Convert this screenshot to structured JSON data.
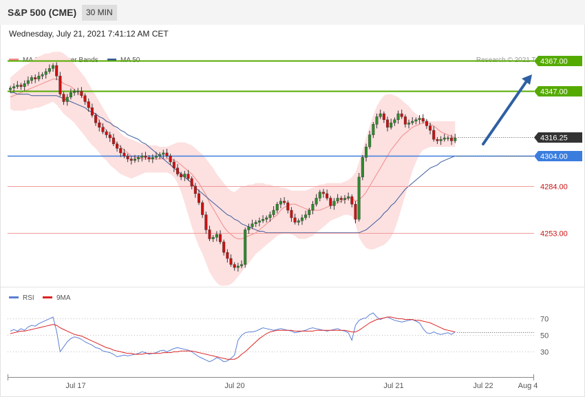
{
  "header": {
    "title": "S&P 500 (CME)",
    "timeframe": "30 MIN",
    "datetime": "Wednesday, July 21, 2021 7:41:12 AM CET"
  },
  "legend": {
    "ma20_label": "MA 20 + Bollinger Bands",
    "ma50_label": "MA 50",
    "copyright": "Research © 2021 Trading Central",
    "rsi_label": "RSI",
    "rsi_ma_label": "9MA"
  },
  "colors": {
    "up_candle": "#2e8b2e",
    "down_candle": "#cc1111",
    "bollinger_fill": "#fde0e0",
    "ma20": "#f28a8a",
    "ma50": "#3a5a9a",
    "resistance": "#55aa00",
    "pivot": "#3b7ddd",
    "support": "#f09a9a",
    "last_price_tag": "#333333",
    "rsi": "#5a7fd4",
    "rsi_ma": "#dd2222",
    "arrow": "#2e5fa3"
  },
  "chart_data": [
    {
      "type": "candlestick",
      "title": "",
      "ylim": [
        4220,
        4380
      ],
      "x_ticks": [
        "Jul 17",
        "Jul 20",
        "Jul 21",
        "Jul 22",
        "Aug 4"
      ],
      "legend_position": "top-left",
      "levels": [
        {
          "label": "4367.00",
          "value": 4367,
          "kind": "resistance"
        },
        {
          "label": "4347.00",
          "value": 4347,
          "kind": "resistance"
        },
        {
          "label": "4316.25",
          "value": 4316.25,
          "kind": "last"
        },
        {
          "label": "4304.00",
          "value": 4304,
          "kind": "pivot"
        },
        {
          "label": "4284.00",
          "value": 4284,
          "kind": "support"
        },
        {
          "label": "4253.00",
          "value": 4253,
          "kind": "support"
        }
      ],
      "close": [
        4349,
        4350,
        4351,
        4350,
        4352,
        4354,
        4356,
        4355,
        4357,
        4358,
        4360,
        4362,
        4364,
        4357,
        4345,
        4340,
        4343,
        4346,
        4347,
        4347,
        4344,
        4340,
        4336,
        4331,
        4326,
        4323,
        4320,
        4318,
        4316,
        4312,
        4309,
        4306,
        4304,
        4302,
        4301,
        4302,
        4303,
        4304,
        4303,
        4302,
        4303,
        4304,
        4305,
        4306,
        4304,
        4300,
        4296,
        4292,
        4290,
        4292,
        4289,
        4284,
        4279,
        4273,
        4265,
        4255,
        4249,
        4250,
        4252,
        4247,
        4240,
        4236,
        4232,
        4230,
        4231,
        4232,
        4255,
        4257,
        4259,
        4260,
        4261,
        4262,
        4263,
        4265,
        4268,
        4272,
        4274,
        4273,
        4268,
        4263,
        4260,
        4261,
        4263,
        4265,
        4268,
        4272,
        4276,
        4280,
        4279,
        4276,
        4271,
        4274,
        4276,
        4275,
        4276,
        4277,
        4272,
        4262,
        4290,
        4303,
        4310,
        4318,
        4325,
        4330,
        4332,
        4328,
        4323,
        4326,
        4328,
        4332,
        4330,
        4325,
        4326,
        4327,
        4328,
        4329,
        4327,
        4324,
        4321,
        4315,
        4314,
        4315,
        4316,
        4316,
        4314,
        4316
      ],
      "ma20": [
        4343,
        4344,
        4345,
        4346,
        4347,
        4348,
        4349,
        4350,
        4351,
        4352,
        4353,
        4354,
        4355,
        4355,
        4354,
        4352,
        4351,
        4350,
        4348,
        4346,
        4344,
        4341,
        4338,
        4334,
        4331,
        4327,
        4324,
        4321,
        4318,
        4315,
        4312,
        4310,
        4308,
        4306,
        4304,
        4303,
        4303,
        4302,
        4302,
        4302,
        4302,
        4302,
        4302,
        4302,
        4302,
        4302,
        4301,
        4300,
        4298,
        4296,
        4294,
        4292,
        4289,
        4286,
        4282,
        4278,
        4273,
        4269,
        4265,
        4261,
        4257,
        4254,
        4252,
        4250,
        4249,
        4249,
        4250,
        4251,
        4252,
        4253,
        4255,
        4257,
        4259,
        4261,
        4263,
        4265,
        4268,
        4270,
        4271,
        4272,
        4272,
        4271,
        4270,
        4269,
        4268,
        4268,
        4268,
        4268,
        4269,
        4270,
        4271,
        4272,
        4273,
        4274,
        4275,
        4276,
        4276,
        4274,
        4275,
        4277,
        4280,
        4284,
        4288,
        4292,
        4296,
        4300,
        4304,
        4308,
        4311,
        4314,
        4317,
        4319,
        4321,
        4323,
        4324,
        4325,
        4326,
        4326,
        4325,
        4324,
        4322,
        4320,
        4319,
        4318,
        4317,
        4316
      ],
      "ma50": [
        4346,
        4346,
        4345,
        4345,
        4345,
        4345,
        4344,
        4344,
        4344,
        4344,
        4344,
        4344,
        4344,
        4344,
        4343,
        4342,
        4341,
        4340,
        4339,
        4338,
        4337,
        4336,
        4334,
        4333,
        4332,
        4330,
        4329,
        4327,
        4326,
        4324,
        4323,
        4321,
        4320,
        4318,
        4317,
        4316,
        4315,
        4313,
        4312,
        4310,
        4308,
        4306,
        4304,
        4302,
        4300,
        4298,
        4296,
        4294,
        4292,
        4290,
        4288,
        4286,
        4283,
        4281,
        4279,
        4277,
        4275,
        4273,
        4271,
        4269,
        4267,
        4265,
        4264,
        4262,
        4261,
        4259,
        4258,
        4257,
        4256,
        4255,
        4254,
        4254,
        4253,
        4253,
        4253,
        4253,
        4253,
        4253,
        4253,
        4253,
        4253,
        4253,
        4253,
        4253,
        4253,
        4253,
        4253,
        4253,
        4253,
        4253,
        4253,
        4253,
        4253,
        4253,
        4253,
        4253,
        4253,
        4253,
        4253,
        4254,
        4255,
        4257,
        4259,
        4261,
        4263,
        4266,
        4268,
        4271,
        4273,
        4276,
        4279,
        4282,
        4284,
        4286,
        4288,
        4290,
        4292,
        4294,
        4296,
        4297,
        4298,
        4300,
        4301,
        4302,
        4303,
        4304
      ],
      "bb_upper": [
        4356,
        4358,
        4360,
        4362,
        4364,
        4365,
        4367,
        4369,
        4370,
        4371,
        4372,
        4372,
        4373,
        4373,
        4373,
        4372,
        4370,
        4368,
        4365,
        4362,
        4359,
        4356,
        4352,
        4348,
        4344,
        4340,
        4336,
        4332,
        4328,
        4325,
        4322,
        4319,
        4317,
        4316,
        4315,
        4314,
        4313,
        4312,
        4312,
        4311,
        4311,
        4311,
        4310,
        4310,
        4310,
        4311,
        4312,
        4313,
        4313,
        4313,
        4312,
        4311,
        4309,
        4307,
        4305,
        4302,
        4299,
        4296,
        4292,
        4289,
        4286,
        4283,
        4281,
        4280,
        4282,
        4284,
        4284,
        4285,
        4285,
        4286,
        4286,
        4286,
        4285,
        4285,
        4284,
        4284,
        4283,
        4283,
        4282,
        4281,
        4281,
        4281,
        4281,
        4281,
        4282,
        4283,
        4284,
        4285,
        4285,
        4286,
        4286,
        4286,
        4286,
        4286,
        4287,
        4288,
        4290,
        4293,
        4300,
        4308,
        4316,
        4324,
        4331,
        4337,
        4341,
        4344,
        4345,
        4345,
        4344,
        4343,
        4341,
        4339,
        4337,
        4334,
        4332,
        4330,
        4329,
        4328,
        4327,
        4327,
        4327,
        4327,
        4327,
        4327,
        4327,
        4327
      ],
      "bb_lower": [
        4335,
        4334,
        4334,
        4334,
        4334,
        4335,
        4335,
        4336,
        4336,
        4337,
        4338,
        4339,
        4340,
        4338,
        4335,
        4332,
        4330,
        4328,
        4326,
        4323,
        4320,
        4317,
        4314,
        4311,
        4309,
        4306,
        4303,
        4301,
        4298,
        4296,
        4294,
        4292,
        4291,
        4290,
        4289,
        4290,
        4291,
        4292,
        4293,
        4293,
        4293,
        4293,
        4293,
        4293,
        4293,
        4292,
        4290,
        4286,
        4280,
        4273,
        4265,
        4257,
        4250,
        4244,
        4239,
        4233,
        4227,
        4223,
        4220,
        4218,
        4218,
        4218,
        4219,
        4221,
        4224,
        4227,
        4230,
        4233,
        4236,
        4239,
        4241,
        4243,
        4245,
        4247,
        4249,
        4251,
        4252,
        4253,
        4253,
        4252,
        4251,
        4249,
        4249,
        4249,
        4250,
        4251,
        4253,
        4255,
        4257,
        4259,
        4261,
        4262,
        4263,
        4264,
        4265,
        4265,
        4264,
        4259,
        4250,
        4246,
        4243,
        4242,
        4242,
        4243,
        4244,
        4245,
        4247,
        4250,
        4255,
        4262,
        4270,
        4278,
        4286,
        4294,
        4300,
        4305,
        4308,
        4309,
        4310,
        4310,
        4310,
        4310,
        4310,
        4310,
        4310,
        4310
      ]
    },
    {
      "type": "line",
      "title": "",
      "ylim": [
        12,
        82
      ],
      "y_ticks": [
        70,
        50,
        30
      ],
      "rsi": [
        55,
        57,
        55,
        58,
        56,
        60,
        62,
        61,
        64,
        66,
        68,
        70,
        72,
        55,
        30,
        36,
        42,
        46,
        48,
        47,
        45,
        42,
        40,
        38,
        35,
        34,
        31,
        30,
        29,
        27,
        24,
        25,
        26,
        25,
        26,
        27,
        28,
        30,
        29,
        27,
        28,
        29,
        31,
        32,
        30,
        32,
        34,
        35,
        34,
        33,
        32,
        30,
        27,
        24,
        22,
        20,
        18,
        20,
        23,
        21,
        18,
        19,
        22,
        26,
        44,
        50,
        53,
        54,
        54,
        55,
        57,
        59,
        58,
        57,
        56,
        57,
        58,
        57,
        56,
        55,
        53,
        54,
        55,
        56,
        58,
        59,
        58,
        57,
        56,
        55,
        56,
        57,
        58,
        56,
        55,
        53,
        44,
        62,
        68,
        70,
        71,
        75,
        77,
        72,
        69,
        71,
        72,
        70,
        68,
        67,
        66,
        67,
        68,
        69,
        67,
        65,
        58,
        53,
        52,
        54,
        52,
        51,
        52,
        53,
        51,
        54
      ],
      "ma9": [
        52,
        53,
        54,
        55,
        55,
        56,
        57,
        58,
        59,
        60,
        61,
        62,
        63,
        62,
        59,
        57,
        55,
        53,
        51,
        50,
        49,
        47,
        45,
        43,
        41,
        39,
        37,
        35,
        34,
        32,
        31,
        30,
        29,
        28,
        28,
        27,
        27,
        27,
        28,
        28,
        28,
        28,
        28,
        29,
        29,
        29,
        30,
        30,
        31,
        31,
        31,
        31,
        30,
        29,
        28,
        27,
        26,
        25,
        24,
        23,
        22,
        21,
        21,
        21,
        23,
        27,
        30,
        34,
        38,
        42,
        46,
        49,
        52,
        54,
        55,
        56,
        56,
        56,
        56,
        56,
        55,
        55,
        55,
        55,
        55,
        55,
        56,
        56,
        56,
        56,
        56,
        56,
        56,
        56,
        56,
        55,
        54,
        54,
        56,
        59,
        62,
        65,
        67,
        69,
        70,
        71,
        72,
        72,
        71,
        70,
        70,
        69,
        69,
        69,
        68,
        68,
        67,
        66,
        65,
        63,
        61,
        59,
        57,
        56,
        55,
        54
      ]
    }
  ]
}
